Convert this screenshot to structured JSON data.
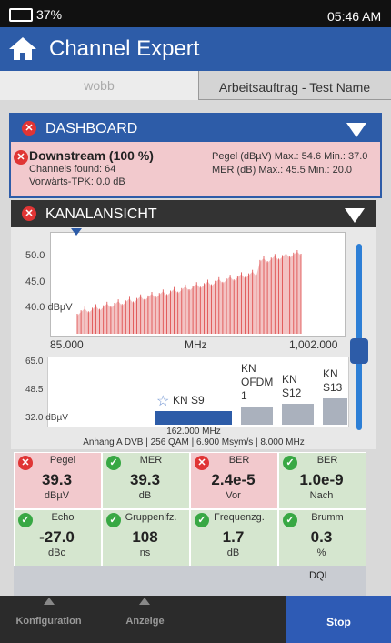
{
  "status_bar": {
    "battery": "37%",
    "time": "05:46 AM"
  },
  "header": {
    "title": "Channel Expert"
  },
  "tabs": [
    "wobb",
    "Arbeitsauftrag - Test Name"
  ],
  "dashboard": {
    "title": "DASHBOARD",
    "heading": "Downstream (100 %)",
    "lines": [
      "Channels found: 64",
      "Vorwärts-TPK: 0.0 dB"
    ],
    "stats": [
      "Pegel (dBµV) Max.: 54.6 Min.: 37.0",
      "MER (dB) Max.: 45.5 Min.: 20.0"
    ]
  },
  "channel_view": {
    "title": "KANALANSICHT",
    "spectrum": {
      "y_labels": [
        "50.0",
        "45.0",
        "40.0 dBµV"
      ],
      "x_labels": [
        "85.000",
        "MHz",
        "1,002.000"
      ]
    },
    "levels": {
      "y_labels": [
        "65.0",
        "48.5",
        "32.0 dBµV"
      ],
      "channels": [
        "KN S9",
        "KN OFDM 1",
        "KN S12",
        "KN S13"
      ],
      "frequency": "162.000 MHz",
      "info": "Anhang A DVB | 256 QAM | 6.900 Msym/s | 8.000 MHz"
    }
  },
  "measurements": [
    {
      "label": "Pegel",
      "value": "39.3",
      "unit": "dBµV",
      "status": "fail"
    },
    {
      "label": "MER",
      "value": "39.3",
      "unit": "dB",
      "status": "pass"
    },
    {
      "label": "BER",
      "value": "2.4e-5",
      "unit": "Vor",
      "status": "fail"
    },
    {
      "label": "BER",
      "value": "1.0e-9",
      "unit": "Nach",
      "status": "pass"
    },
    {
      "label": "Echo",
      "value": "-27.0",
      "unit": "dBc",
      "status": "pass"
    },
    {
      "label": "Gruppenlfz.",
      "value": "108",
      "unit": "ns",
      "status": "pass"
    },
    {
      "label": "Frequenzg.",
      "value": "1.7",
      "unit": "dB",
      "status": "pass"
    },
    {
      "label": "Brumm",
      "value": "0.3",
      "unit": "%",
      "status": "pass"
    }
  ],
  "dqi": "DQI",
  "nav": [
    "Konfiguration",
    "Anzeige",
    "Stop"
  ]
}
